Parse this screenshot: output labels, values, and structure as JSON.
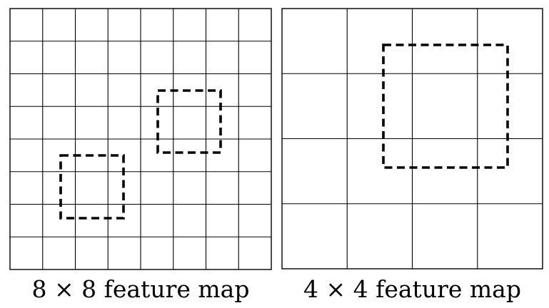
{
  "diagram": {
    "left_panel": {
      "grid_size": 8,
      "caption": "8 × 8 feature map",
      "highlight_boxes_count": 2
    },
    "right_panel": {
      "grid_size": 4,
      "caption": "4 × 4 feature map",
      "highlight_boxes_count": 1
    },
    "colors": {
      "line": "#000000",
      "background": "#ffffff"
    }
  }
}
